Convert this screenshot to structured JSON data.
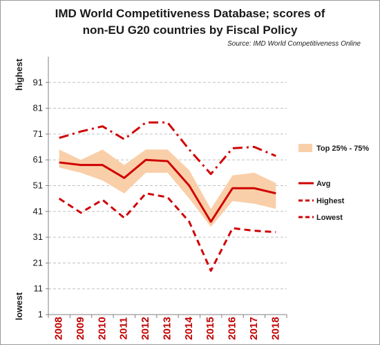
{
  "chart_data": {
    "type": "line",
    "title_line1": "IMD World Competitiveness Database; scores of",
    "title_line2": "non-EU G20 countries by Fiscal Policy",
    "source": "Source: IMD World Competitiveness Online",
    "ylabel_top": "highest",
    "ylabel_bottom": "lowest",
    "ylim": [
      1,
      101
    ],
    "yticks": [
      1,
      11,
      21,
      31,
      41,
      51,
      61,
      71,
      81,
      91
    ],
    "categories": [
      "2008",
      "2009",
      "2010",
      "2011",
      "2012",
      "2013",
      "2014",
      "2015",
      "2016",
      "2017",
      "2018"
    ],
    "grid": true,
    "legend_position": "right",
    "band": {
      "name": "Top 25% - 75%",
      "color": "#f9cfa9",
      "lower": [
        58,
        56,
        53,
        48,
        56,
        56,
        46,
        35,
        45,
        44,
        42
      ],
      "upper": [
        65,
        61,
        65,
        59,
        65,
        65,
        57,
        42,
        55,
        56,
        52
      ]
    },
    "series": [
      {
        "name": "Avg",
        "style": "solid",
        "color": "#d00000",
        "values": [
          60,
          59,
          59,
          54,
          61,
          60.5,
          51,
          37,
          50,
          50,
          48
        ]
      },
      {
        "name": "Highest",
        "style": "dashed",
        "color": "#d00000",
        "values": [
          69.5,
          72,
          74,
          69,
          75.5,
          75.5,
          65,
          55.5,
          65.5,
          66,
          62.5
        ]
      },
      {
        "name": "Lowest",
        "style": "dashed-short",
        "color": "#d00000",
        "values": [
          46,
          40.5,
          45.5,
          38.5,
          48,
          46.5,
          37,
          18,
          34.5,
          33.5,
          33
        ]
      }
    ],
    "colors": {
      "line": "#d00000",
      "grid": "#bfbfbf",
      "axis": "#808080",
      "tick_label": "#c00000"
    }
  }
}
